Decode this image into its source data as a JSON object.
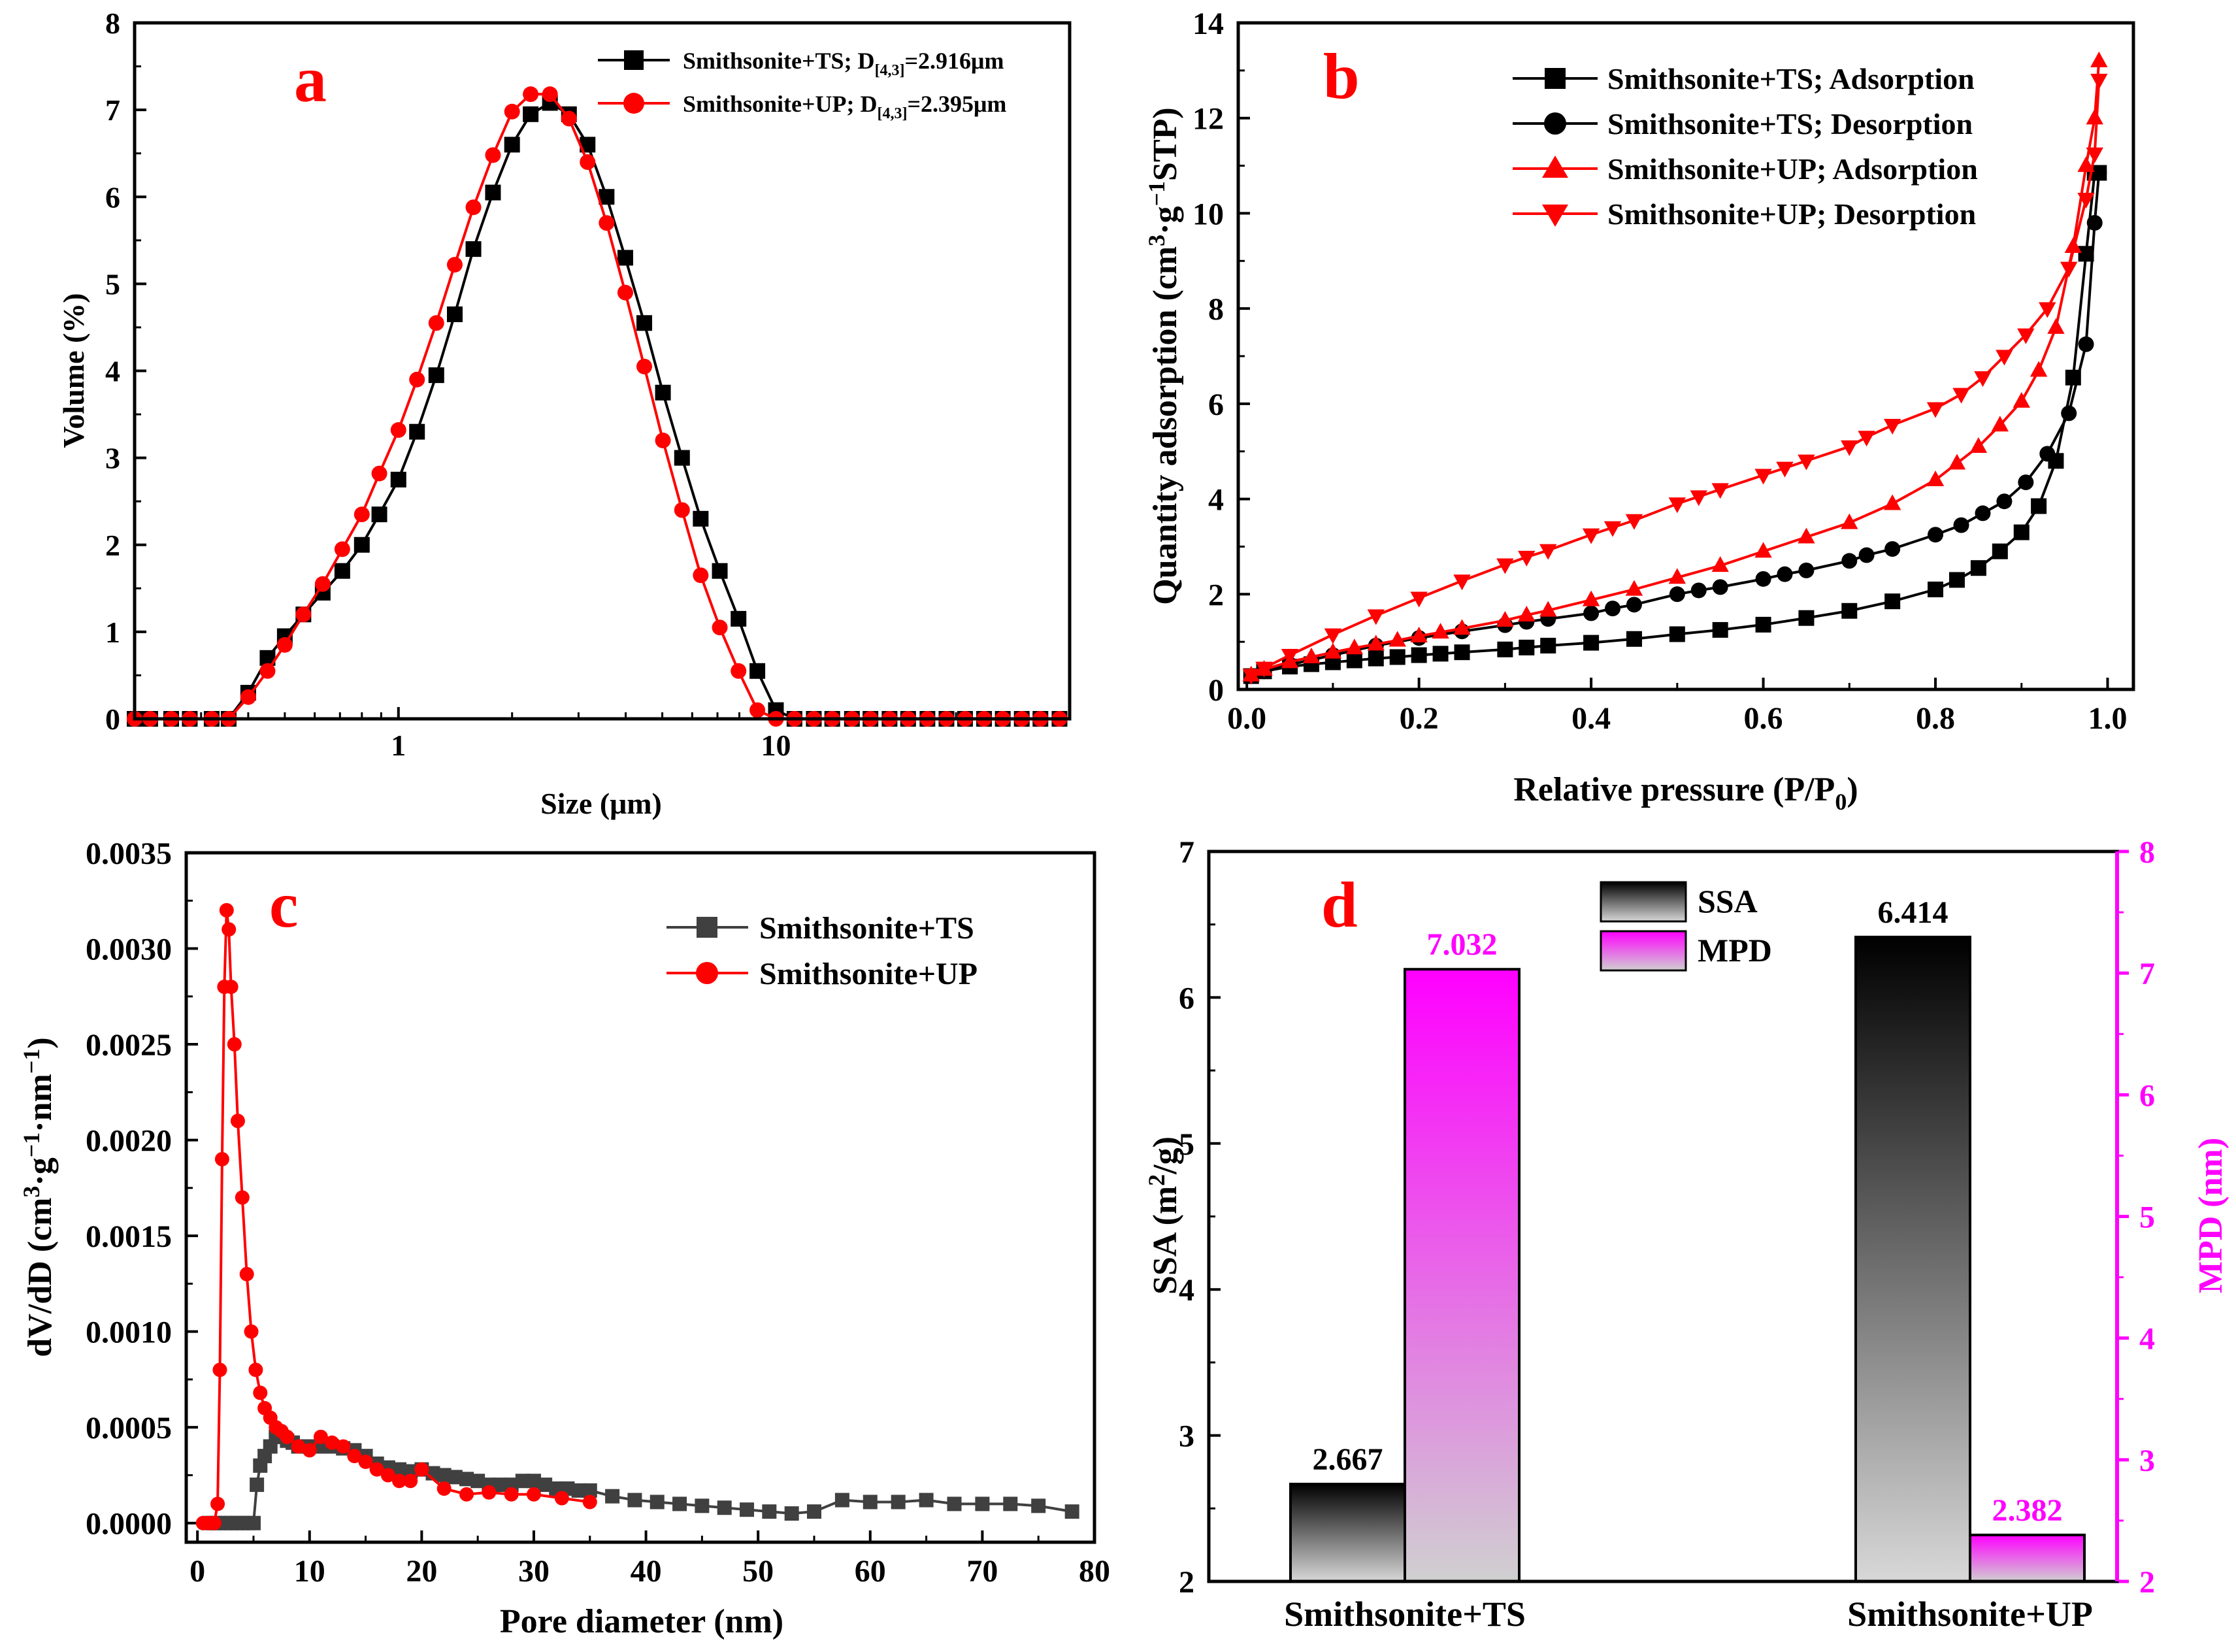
{
  "chart_data": [
    {
      "panel": "a",
      "type": "line",
      "xscale": "log",
      "xlabel": "Size (μm)",
      "ylabel": "Volume (%)",
      "xlim": [
        0.2,
        60
      ],
      "ylim": [
        0,
        8
      ],
      "xticks": [
        1,
        10
      ],
      "yticks": [
        0,
        1,
        2,
        3,
        4,
        5,
        6,
        7,
        8
      ],
      "legend_position": "top-right",
      "series": [
        {
          "name": "Smithsonite+TS",
          "legend_text": "Smithsonite+TS;  D",
          "legend_sub": "[4,3]",
          "legend_tail": "=2.916μm",
          "color": "#000000",
          "marker": "square",
          "x": [
            0.2,
            0.22,
            0.25,
            0.28,
            0.32,
            0.355,
            0.4,
            0.45,
            0.5,
            0.56,
            0.63,
            0.71,
            0.8,
            0.89,
            1.0,
            1.12,
            1.26,
            1.41,
            1.58,
            1.78,
            2.0,
            2.24,
            2.52,
            2.83,
            3.17,
            3.56,
            3.99,
            4.48,
            5.02,
            5.64,
            6.32,
            7.1,
            7.96,
            8.93,
            10.0,
            11.2,
            12.6,
            14.1,
            15.9,
            17.8,
            20.0,
            22.4,
            25.2,
            28.3,
            31.7,
            35.6,
            39.9,
            44.8,
            50.2,
            56.4
          ],
          "y": [
            0,
            0,
            0,
            0,
            0,
            0,
            0.3,
            0.7,
            0.95,
            1.2,
            1.45,
            1.7,
            2.0,
            2.35,
            2.75,
            3.3,
            3.95,
            4.65,
            5.4,
            6.05,
            6.6,
            6.95,
            7.08,
            6.95,
            6.6,
            6.0,
            5.3,
            4.55,
            3.75,
            3.0,
            2.3,
            1.7,
            1.15,
            0.55,
            0.1,
            0,
            0,
            0,
            0,
            0,
            0,
            0,
            0,
            0,
            0,
            0,
            0,
            0,
            0,
            0
          ]
        },
        {
          "name": "Smithsonite+UP",
          "legend_text": "Smithsonite+UP;  D",
          "legend_sub": "[4,3]",
          "legend_tail": "=2.395μm",
          "color": "#ff0000",
          "marker": "circle",
          "x": [
            0.2,
            0.22,
            0.25,
            0.28,
            0.32,
            0.355,
            0.4,
            0.45,
            0.5,
            0.56,
            0.63,
            0.71,
            0.8,
            0.89,
            1.0,
            1.12,
            1.26,
            1.41,
            1.58,
            1.78,
            2.0,
            2.24,
            2.52,
            2.83,
            3.17,
            3.56,
            3.99,
            4.48,
            5.02,
            5.64,
            6.32,
            7.1,
            7.96,
            8.93,
            10.0,
            11.2,
            12.6,
            14.1,
            15.9,
            17.8,
            20.0,
            22.4,
            25.2,
            28.3,
            31.7,
            35.6,
            39.9,
            44.8,
            50.2,
            56.4
          ],
          "y": [
            0,
            0,
            0,
            0,
            0,
            0,
            0.25,
            0.55,
            0.85,
            1.2,
            1.55,
            1.95,
            2.35,
            2.82,
            3.32,
            3.9,
            4.55,
            5.22,
            5.88,
            6.48,
            6.98,
            7.18,
            7.18,
            6.9,
            6.4,
            5.7,
            4.9,
            4.05,
            3.2,
            2.4,
            1.65,
            1.05,
            0.55,
            0.1,
            0,
            0,
            0,
            0,
            0,
            0,
            0,
            0,
            0,
            0,
            0,
            0,
            0,
            0,
            0,
            0
          ]
        }
      ]
    },
    {
      "panel": "b",
      "type": "line",
      "xlabel": "Relative pressure (P/P",
      "xlabel_sub": "0",
      "xlabel_tail": ")",
      "ylabel": "Quantity adsorption (cm",
      "ylabel_sup1": "3",
      "ylabel_mid": "·g",
      "ylabel_sup2": "−1",
      "ylabel_tail": "STP)",
      "xlim": [
        0,
        1.0
      ],
      "ylim": [
        0,
        14
      ],
      "xticks": [
        0.0,
        0.2,
        0.4,
        0.6,
        0.8,
        1.0
      ],
      "xtick_labels": [
        "0.0",
        "0.2",
        "0.4",
        "0.6",
        "0.8",
        "1.0"
      ],
      "yticks": [
        0,
        2,
        4,
        6,
        8,
        10,
        12,
        14
      ],
      "legend_position": "top-right",
      "series": [
        {
          "name": "Smithsonite+TS; Adsorption",
          "color": "#000000",
          "marker": "square",
          "x": [
            0.005,
            0.02,
            0.05,
            0.075,
            0.1,
            0.125,
            0.15,
            0.175,
            0.2,
            0.225,
            0.25,
            0.3,
            0.325,
            0.35,
            0.4,
            0.45,
            0.5,
            0.55,
            0.6,
            0.65,
            0.7,
            0.75,
            0.8,
            0.825,
            0.85,
            0.875,
            0.9,
            0.92,
            0.94,
            0.96,
            0.975,
            0.985,
            0.99
          ],
          "y": [
            0.28,
            0.38,
            0.48,
            0.53,
            0.57,
            0.61,
            0.65,
            0.68,
            0.72,
            0.75,
            0.78,
            0.84,
            0.88,
            0.92,
            0.98,
            1.06,
            1.16,
            1.25,
            1.36,
            1.5,
            1.65,
            1.85,
            2.1,
            2.3,
            2.55,
            2.9,
            3.3,
            3.85,
            4.8,
            6.55,
            9.15,
            10.85,
            10.85
          ]
        },
        {
          "name": "Smithsonite+TS; Desorption",
          "color": "#000000",
          "marker": "circle",
          "x": [
            0.99,
            0.985,
            0.975,
            0.955,
            0.93,
            0.905,
            0.88,
            0.855,
            0.83,
            0.8,
            0.75,
            0.72,
            0.7,
            0.65,
            0.625,
            0.6,
            0.55,
            0.525,
            0.5,
            0.45,
            0.425,
            0.4,
            0.35,
            0.325,
            0.3,
            0.25,
            0.2,
            0.15,
            0.1,
            0.05,
            0.02,
            0.005
          ],
          "y": [
            10.85,
            9.8,
            7.25,
            5.8,
            4.95,
            4.35,
            3.95,
            3.7,
            3.45,
            3.25,
            2.95,
            2.82,
            2.7,
            2.5,
            2.42,
            2.32,
            2.15,
            2.08,
            2.0,
            1.78,
            1.7,
            1.6,
            1.48,
            1.42,
            1.35,
            1.22,
            1.08,
            0.92,
            0.72,
            0.52,
            0.38,
            0.28
          ]
        },
        {
          "name": "Smithsonite+UP; Adsorption",
          "color": "#ff0000",
          "marker": "triangle-up",
          "x": [
            0.005,
            0.02,
            0.05,
            0.075,
            0.1,
            0.125,
            0.15,
            0.175,
            0.2,
            0.225,
            0.25,
            0.3,
            0.325,
            0.35,
            0.4,
            0.45,
            0.5,
            0.55,
            0.6,
            0.65,
            0.7,
            0.75,
            0.8,
            0.825,
            0.85,
            0.875,
            0.9,
            0.92,
            0.94,
            0.96,
            0.975,
            0.985,
            0.99
          ],
          "y": [
            0.3,
            0.42,
            0.58,
            0.68,
            0.78,
            0.87,
            0.95,
            1.03,
            1.12,
            1.2,
            1.28,
            1.45,
            1.56,
            1.66,
            1.88,
            2.1,
            2.35,
            2.6,
            2.9,
            3.2,
            3.5,
            3.9,
            4.4,
            4.75,
            5.1,
            5.55,
            6.05,
            6.7,
            7.6,
            9.3,
            11.0,
            12.0,
            13.2
          ]
        },
        {
          "name": "Smithsonite+UP; Desorption",
          "color": "#ff0000",
          "marker": "triangle-down",
          "x": [
            0.99,
            0.985,
            0.975,
            0.955,
            0.93,
            0.905,
            0.88,
            0.855,
            0.83,
            0.8,
            0.75,
            0.72,
            0.7,
            0.65,
            0.625,
            0.6,
            0.55,
            0.525,
            0.5,
            0.45,
            0.425,
            0.4,
            0.35,
            0.325,
            0.3,
            0.25,
            0.2,
            0.15,
            0.1,
            0.05,
            0.02,
            0.005
          ],
          "y": [
            12.8,
            11.25,
            10.3,
            8.85,
            8.0,
            7.45,
            7.0,
            6.55,
            6.2,
            5.9,
            5.55,
            5.3,
            5.1,
            4.8,
            4.65,
            4.5,
            4.2,
            4.05,
            3.9,
            3.55,
            3.4,
            3.25,
            2.92,
            2.78,
            2.62,
            2.28,
            1.92,
            1.55,
            1.15,
            0.72,
            0.45,
            0.3
          ]
        }
      ]
    },
    {
      "panel": "c",
      "type": "line",
      "xlabel": "Pore diameter (nm)",
      "ylabel": "dV/dD (cm",
      "ylabel_sup1": "3",
      "ylabel_mid": "·g",
      "ylabel_sup2": "−1",
      "ylabel_mid2": "·nm",
      "ylabel_sup3": "−1",
      "ylabel_tail": ")",
      "xlim": [
        -1,
        80
      ],
      "ylim": [
        -0.0001,
        0.0035
      ],
      "xticks": [
        0,
        10,
        20,
        30,
        40,
        50,
        60,
        70,
        80
      ],
      "yticks": [
        0.0,
        0.0005,
        0.001,
        0.0015,
        0.002,
        0.0025,
        0.003,
        0.0035
      ],
      "ytick_labels": [
        "0.0000",
        "0.0005",
        "0.0010",
        "0.0015",
        "0.0020",
        "0.0025",
        "0.0030",
        "0.0035"
      ],
      "legend_position": "top-right",
      "series": [
        {
          "name": "Smithsonite+TS",
          "color": "#404040",
          "marker": "square",
          "x": [
            1.0,
            1.5,
            2.0,
            2.5,
            3.0,
            3.5,
            4.0,
            4.5,
            5.0,
            5.3,
            5.6,
            6.0,
            6.5,
            7.0,
            7.5,
            8.0,
            8.5,
            9.0,
            10.0,
            11.0,
            12.0,
            13.0,
            14.0,
            15.0,
            16.0,
            17.0,
            18.0,
            19.0,
            20.0,
            21.0,
            22.0,
            23.0,
            24.0,
            25.0,
            26.0,
            27.0,
            28.0,
            29.0,
            30.0,
            31.0,
            32.0,
            33.0,
            34.0,
            35.0,
            37.0,
            39.0,
            41.0,
            43.0,
            45.0,
            47.0,
            49.0,
            51.0,
            53.0,
            55.0,
            57.5,
            60.0,
            62.5,
            65.0,
            67.5,
            70.0,
            72.5,
            75.0,
            78.0
          ],
          "y": [
            0.0,
            0.0,
            0.0,
            0.0,
            0.0,
            0.0,
            0.0,
            0.0,
            0.0,
            0.0002,
            0.0003,
            0.00035,
            0.0004,
            0.00045,
            0.00045,
            0.00043,
            0.00042,
            0.0004,
            0.0004,
            0.0004,
            0.0004,
            0.00039,
            0.00038,
            0.00035,
            0.00031,
            0.00029,
            0.00028,
            0.00027,
            0.00028,
            0.00026,
            0.00025,
            0.00024,
            0.00023,
            0.00022,
            0.0002,
            0.0002,
            0.0002,
            0.00022,
            0.00022,
            0.0002,
            0.00018,
            0.00018,
            0.00017,
            0.00017,
            0.00014,
            0.00012,
            0.00011,
            0.0001,
            9e-05,
            8e-05,
            7e-05,
            6e-05,
            5e-05,
            6e-05,
            0.00012,
            0.00011,
            0.00011,
            0.00012,
            0.0001,
            0.0001,
            0.0001,
            9e-05,
            6e-05
          ]
        },
        {
          "name": "Smithsonite+UP",
          "color": "#ff0000",
          "marker": "circle",
          "x": [
            0.5,
            1.0,
            1.5,
            1.8,
            2.0,
            2.2,
            2.4,
            2.6,
            2.8,
            3.0,
            3.3,
            3.6,
            4.0,
            4.4,
            4.8,
            5.2,
            5.6,
            6.0,
            6.5,
            7.0,
            7.5,
            8.0,
            9.0,
            10.0,
            11.0,
            12.0,
            13.0,
            14.0,
            15.0,
            16.0,
            17.0,
            18.0,
            19.0,
            20.0,
            22.0,
            24.0,
            26.0,
            28.0,
            30.0,
            32.5,
            35.0
          ],
          "y": [
            0.0,
            0.0,
            0.0,
            0.0001,
            0.0008,
            0.0019,
            0.0028,
            0.0032,
            0.0031,
            0.0028,
            0.0025,
            0.0021,
            0.0017,
            0.0013,
            0.001,
            0.0008,
            0.00068,
            0.0006,
            0.00055,
            0.0005,
            0.00048,
            0.00045,
            0.0004,
            0.00038,
            0.00045,
            0.00042,
            0.0004,
            0.00035,
            0.00032,
            0.00028,
            0.00025,
            0.00022,
            0.00022,
            0.00028,
            0.00018,
            0.00015,
            0.00016,
            0.00015,
            0.00015,
            0.00013,
            0.00011
          ]
        }
      ]
    },
    {
      "panel": "d",
      "type": "bar",
      "categories": [
        "Smithsonite+TS",
        "Smithsonite+UP"
      ],
      "ylabel_left": "SSA (m",
      "ylabel_left_sup": "2",
      "ylabel_left_tail": "/g)",
      "ylabel_right": "MPD (nm)",
      "ylim_left": [
        2,
        7
      ],
      "ylim_right": [
        2,
        8
      ],
      "yticks_left": [
        2,
        3,
        4,
        5,
        6,
        7
      ],
      "yticks_right": [
        2,
        3,
        4,
        5,
        6,
        7,
        8
      ],
      "legend_position": "top-center",
      "series": [
        {
          "name": "SSA",
          "axis": "left",
          "color": "#000000",
          "values": [
            2.667,
            6.414
          ],
          "labels": [
            "2.667",
            "6.414"
          ]
        },
        {
          "name": "MPD",
          "axis": "right",
          "color": "#ff00ff",
          "values": [
            7.032,
            2.382
          ],
          "labels": [
            "7.032",
            "2.382"
          ]
        }
      ]
    }
  ],
  "panel_letters": [
    "a",
    "b",
    "c",
    "d"
  ],
  "colors": {
    "ts": "#000000",
    "up": "#ff0000",
    "ts_gray": "#404040",
    "mpd": "#ff00ff",
    "letter": "#ff0000"
  }
}
